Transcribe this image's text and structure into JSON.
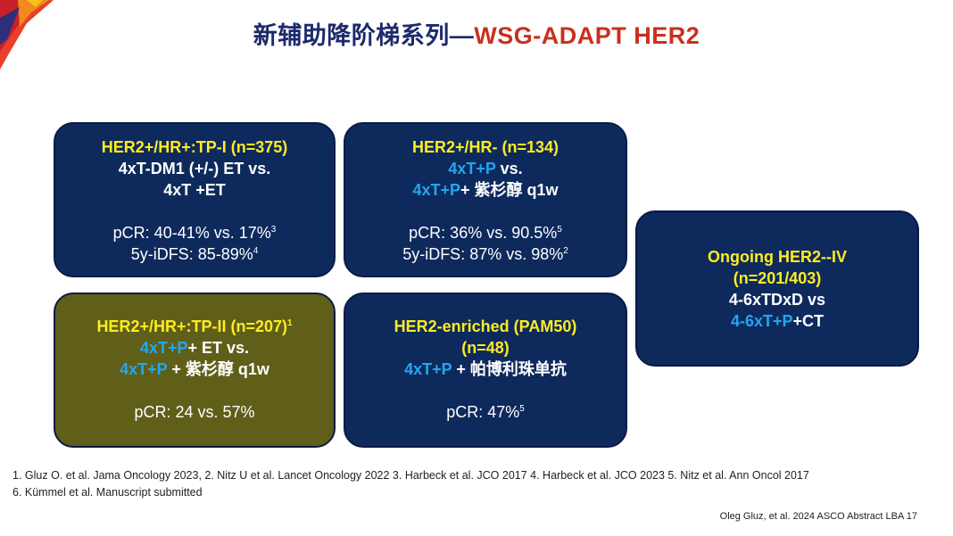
{
  "title": {
    "zh": "新辅助降阶梯系列",
    "dash": "—",
    "wsg": "WSG-ADAPT",
    "her2": "HER2"
  },
  "card1": {
    "line1": "HER2+/HR+:TP-I (n=375)",
    "line2": "4xT-DM1 (+/-) ET vs.",
    "line3": "4xT +ET",
    "pcr": "pCR: 40-41% vs. 17%",
    "pcr_sup": "3",
    "idfs": "5y-iDFS: 85-89%",
    "idfs_sup": "4"
  },
  "card2": {
    "line1": "HER2+/HR- (n=134)",
    "line2_c": "4xT+P",
    "line2_w": " vs.",
    "line3_c": "4xT+P",
    "line3_w": "+ 紫杉醇 q1w",
    "pcr": "pCR: 36% vs. 90.5%",
    "pcr_sup": "5",
    "idfs": "5y-iDFS: 87% vs. 98%",
    "idfs_sup": "2"
  },
  "card3": {
    "line1": "HER2+/HR+:TP-II  (n=207)",
    "line1_sup": "1",
    "line2_c": "4xT+P",
    "line2_w": "+ ET vs.",
    "line3_c": "4xT+P",
    "line3_w": " + 紫杉醇 q1w",
    "pcr": "pCR: 24 vs. 57%"
  },
  "card4": {
    "line1": "HER2-enriched (PAM50)",
    "line2": "(n=48)",
    "line3_c": "4xT+P",
    "line3_w": " + 帕博利珠单抗",
    "pcr": "pCR: 47%",
    "pcr_sup": "5"
  },
  "card5": {
    "line1": "Ongoing HER2--IV",
    "line2": "(n=201/403)",
    "line3": "4-6xTDxD vs",
    "line4_c": "4-6xT+P",
    "line4_w": "+CT"
  },
  "references": {
    "line1": "1. Gluz O. et al. Jama Oncology 2023, 2. Nitz U et al. Lancet Oncology 2022 3. Harbeck et al. JCO 2017 4. Harbeck et al. JCO 2023 5. Nitz et al. Ann Oncol 2017",
    "line2": "6. Kümmel et al. Manuscript submitted"
  },
  "source_note": "Oleg Gluz, et al. 2024 ASCO Abstract LBA 17",
  "colors": {
    "card_blue": "#0e2a5c",
    "card_olive": "#5f5f1a",
    "highlight_yellow": "#ffec1f",
    "highlight_cyan": "#22a7f0",
    "title_navy": "#1c2a6b",
    "title_red": "#c8301e"
  },
  "icons": {
    "corner": "decorative-brush-stroke"
  }
}
